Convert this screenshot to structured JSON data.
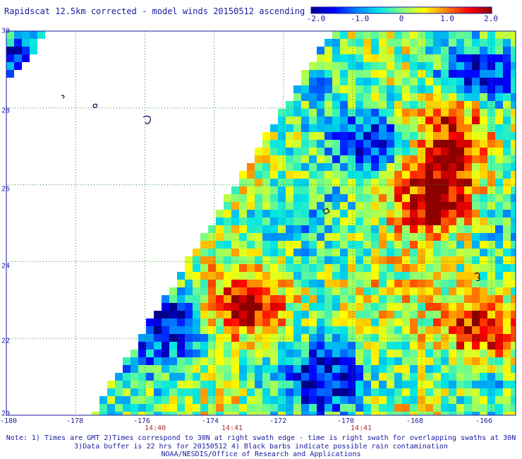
{
  "title": "Rapidscat 12.5km corrected - model winds 20150512 ascending",
  "colorbar": {
    "ticks": [
      "-2.0",
      "-1.0",
      "0",
      "1.0",
      "2.0"
    ],
    "colors": [
      "#00008c",
      "#0000ff",
      "#0080ff",
      "#00e5e5",
      "#7fff7f",
      "#ffff00",
      "#ff8000",
      "#ff0000",
      "#8c0000"
    ]
  },
  "y_ticks": [
    "30",
    "28",
    "26",
    "24",
    "22",
    "20"
  ],
  "x_ticks": [
    "-180",
    "-178",
    "-176",
    "-174",
    "-172",
    "-170",
    "-168",
    "-166"
  ],
  "time_ticks": [
    "14:40",
    "14:41",
    "14:41"
  ],
  "notes": {
    "line1": "Note: 1) Times are GMT 2)Times correspond to 30N at right swath edge - time is right swath for overlapping swaths at 30N",
    "line2": "3)Data buffer is 22 hrs for 20150512 4) Black barbs indicate possible rain contamination",
    "line3": "NOAA/NESDIS/Office of Research and Applications"
  },
  "chart_data": {
    "type": "heatmap",
    "title": "Rapidscat 12.5km corrected - model winds 20150512 ascending",
    "x_range": [
      -180,
      -165.3
    ],
    "y_range": [
      20,
      30
    ],
    "x_ticks": [
      -180,
      -178,
      -176,
      -174,
      -172,
      -170,
      -168,
      -166
    ],
    "y_ticks": [
      20,
      22,
      24,
      26,
      28,
      30
    ],
    "color_range": [
      -2.0,
      2.0
    ],
    "grid": true,
    "regions": [
      {
        "lon": -167.6,
        "lat": 25.4,
        "value": 1.9
      },
      {
        "lon": -167.2,
        "lat": 26.5,
        "value": 1.4
      },
      {
        "lon": -167.0,
        "lat": 27.8,
        "value": 1.5
      },
      {
        "lon": -166.3,
        "lat": 22.2,
        "value": 2.0
      },
      {
        "lon": -173.0,
        "lat": 22.8,
        "value": 1.6
      },
      {
        "lon": -169.5,
        "lat": 27.1,
        "value": -1.9
      },
      {
        "lon": -175.3,
        "lat": 22.4,
        "value": -1.8
      },
      {
        "lon": -170.8,
        "lat": 20.8,
        "value": -1.5
      },
      {
        "lon": -166.5,
        "lat": 28.8,
        "value": -1.4
      },
      {
        "lon": -179.5,
        "lat": 29.5,
        "value": -1.3
      }
    ]
  }
}
